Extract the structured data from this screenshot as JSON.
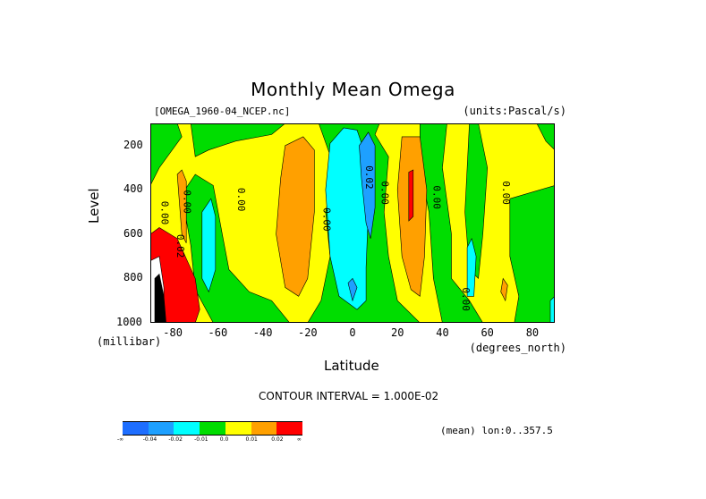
{
  "header": {
    "title": "Monthly Mean Omega",
    "file_label": "[OMEGA_1960-04_NCEP.nc]",
    "units_label": "(units:Pascal/s)"
  },
  "footer": {
    "contour_interval": "CONTOUR INTERVAL = 1.000E-02",
    "mean_note": "(mean) lon:0..357.5"
  },
  "chart_data": {
    "type": "heatmap",
    "title": "Monthly Mean Omega",
    "xlabel": "Latitude",
    "xunit": "(degrees_north)",
    "ylabel": "Level",
    "yunit": "(millibar)",
    "xlim": [
      -90,
      90
    ],
    "ylim": [
      1000,
      100
    ],
    "x_ticks": [
      -80,
      -60,
      -40,
      -20,
      0,
      20,
      40,
      60,
      80
    ],
    "y_ticks": [
      200,
      400,
      600,
      800,
      1000
    ],
    "contour_interval": 0.01,
    "contour_labels": [
      {
        "lat": -85,
        "level": 450,
        "text": "0.00"
      },
      {
        "lat": -75,
        "level": 400,
        "text": "0.00"
      },
      {
        "lat": -78,
        "level": 600,
        "text": "0.02"
      },
      {
        "lat": -51,
        "level": 390,
        "text": "0.00"
      },
      {
        "lat": -13,
        "level": 480,
        "text": "0.00"
      },
      {
        "lat": 6,
        "level": 290,
        "text": "0.02"
      },
      {
        "lat": 13,
        "level": 360,
        "text": "0.00"
      },
      {
        "lat": 36,
        "level": 380,
        "text": "0.00"
      },
      {
        "lat": 49,
        "level": 840,
        "text": "0.00"
      },
      {
        "lat": 67,
        "level": 360,
        "text": "0.00"
      }
    ],
    "colorbar": {
      "bins": [
        "-∞",
        "-0.04",
        "-0.02",
        "-0.01",
        "0.0",
        "0.01",
        "0.02",
        "∞"
      ],
      "colors": [
        "#1e6eff",
        "#1ea0ff",
        "#00ffff",
        "#00dd00",
        "#ffff00",
        "#ffa000",
        "#ff0000"
      ]
    },
    "fields": [
      {
        "name": "background",
        "value_class": "0.0..0.01",
        "color": "#ffff00"
      },
      {
        "name": "green_bands",
        "value_class": "-0.01..0.0",
        "color": "#00dd00"
      },
      {
        "name": "cyan_equatorial",
        "value_class": "-0.02..-0.01",
        "color": "#00ffff"
      },
      {
        "name": "blue_cores",
        "value_class": "-0.04..-0.02",
        "color": "#1ea0ff"
      },
      {
        "name": "orange_subsiding",
        "value_class": "0.01..0.02",
        "color": "#ffa000"
      },
      {
        "name": "red_cores",
        "value_class": ">0.02",
        "color": "#ff0000"
      }
    ]
  }
}
